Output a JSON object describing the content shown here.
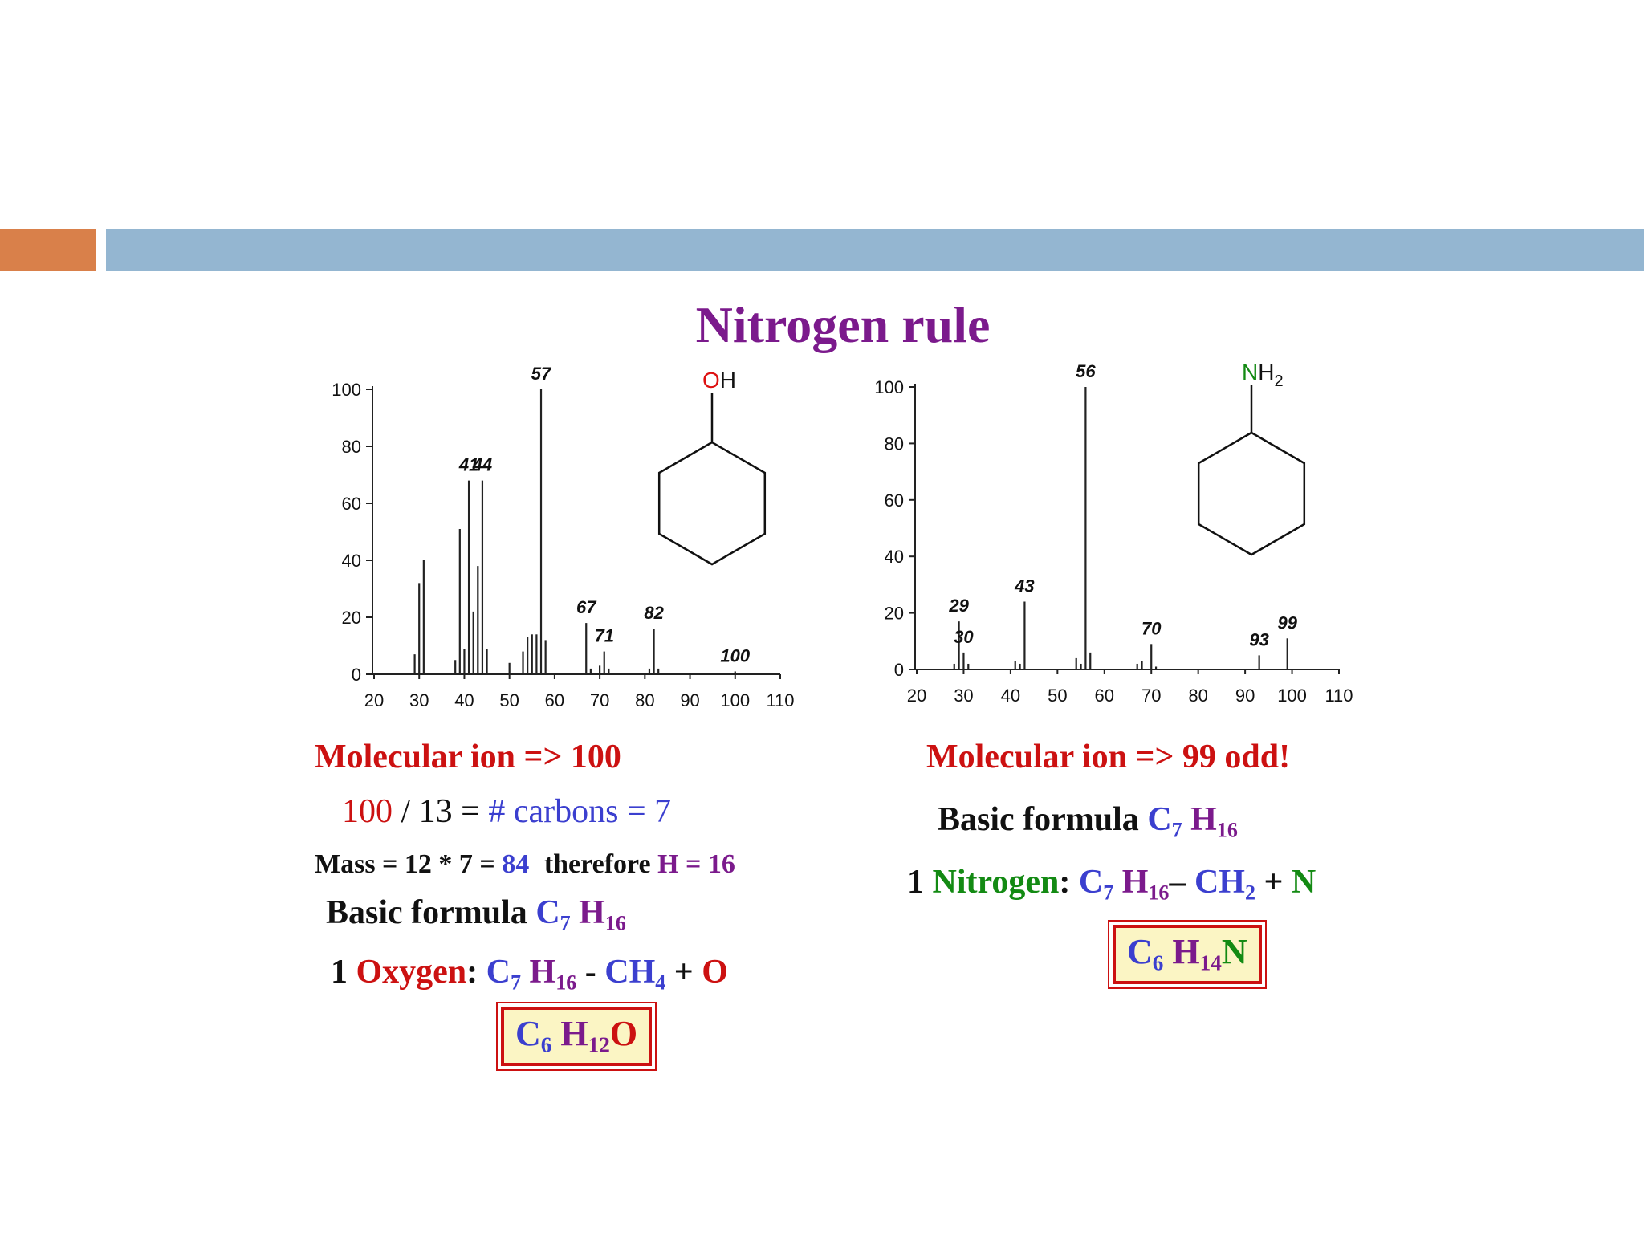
{
  "title": "Nitrogen rule",
  "colors": {
    "accent_orange": "#d9804a",
    "accent_blue": "#94b6d1",
    "title": "#7b1a8c",
    "red": "#cc1111",
    "blue": "#3b3fcf",
    "purple": "#7b1a8c",
    "green": "#138a13"
  },
  "chart_data": [
    {
      "type": "bar",
      "subtype": "mass spectrum",
      "ylim": [
        0,
        100
      ],
      "xlim": [
        20,
        110
      ],
      "yticks": [
        "0",
        "20",
        "40",
        "60",
        "80",
        "100"
      ],
      "xticks": [
        "20",
        "30",
        "40",
        "50",
        "60",
        "70",
        "80",
        "90",
        "100",
        "110"
      ],
      "peaks": [
        {
          "x": 29,
          "y": 7
        },
        {
          "x": 30,
          "y": 32
        },
        {
          "x": 31,
          "y": 40
        },
        {
          "x": 38,
          "y": 5
        },
        {
          "x": 39,
          "y": 51
        },
        {
          "x": 40,
          "y": 9
        },
        {
          "x": 41,
          "y": 68
        },
        {
          "x": 42,
          "y": 22
        },
        {
          "x": 43,
          "y": 38
        },
        {
          "x": 44,
          "y": 68
        },
        {
          "x": 45,
          "y": 9
        },
        {
          "x": 50,
          "y": 4
        },
        {
          "x": 53,
          "y": 8
        },
        {
          "x": 54,
          "y": 13
        },
        {
          "x": 55,
          "y": 14
        },
        {
          "x": 56,
          "y": 14
        },
        {
          "x": 57,
          "y": 100
        },
        {
          "x": 58,
          "y": 12
        },
        {
          "x": 67,
          "y": 18
        },
        {
          "x": 68,
          "y": 2
        },
        {
          "x": 70,
          "y": 3
        },
        {
          "x": 71,
          "y": 8
        },
        {
          "x": 72,
          "y": 2
        },
        {
          "x": 81,
          "y": 2
        },
        {
          "x": 82,
          "y": 16
        },
        {
          "x": 83,
          "y": 2
        },
        {
          "x": 100,
          "y": 1
        }
      ],
      "peak_labels": [
        {
          "x": 41,
          "y": 68,
          "label": "41"
        },
        {
          "x": 44,
          "y": 68,
          "label": "44"
        },
        {
          "x": 57,
          "y": 100,
          "label": "57"
        },
        {
          "x": 67,
          "y": 18,
          "label": "67"
        },
        {
          "x": 71,
          "y": 8,
          "label": "71"
        },
        {
          "x": 82,
          "y": 16,
          "label": "82"
        },
        {
          "x": 100,
          "y": 1,
          "label": "100"
        }
      ],
      "structure": {
        "ring": "cyclohexane",
        "group_element": "O",
        "group_rest": "H"
      }
    },
    {
      "type": "bar",
      "subtype": "mass spectrum",
      "ylim": [
        0,
        100
      ],
      "xlim": [
        20,
        110
      ],
      "yticks": [
        "0",
        "20",
        "40",
        "60",
        "80",
        "100"
      ],
      "xticks": [
        "20",
        "30",
        "40",
        "50",
        "60",
        "70",
        "80",
        "90",
        "100",
        "110"
      ],
      "peaks": [
        {
          "x": 28,
          "y": 2
        },
        {
          "x": 29,
          "y": 17
        },
        {
          "x": 30,
          "y": 6
        },
        {
          "x": 31,
          "y": 2
        },
        {
          "x": 41,
          "y": 3
        },
        {
          "x": 42,
          "y": 2
        },
        {
          "x": 43,
          "y": 24
        },
        {
          "x": 54,
          "y": 4
        },
        {
          "x": 55,
          "y": 2
        },
        {
          "x": 56,
          "y": 100
        },
        {
          "x": 57,
          "y": 6
        },
        {
          "x": 67,
          "y": 2
        },
        {
          "x": 68,
          "y": 3
        },
        {
          "x": 70,
          "y": 9
        },
        {
          "x": 71,
          "y": 1
        },
        {
          "x": 93,
          "y": 5
        },
        {
          "x": 99,
          "y": 11
        }
      ],
      "peak_labels": [
        {
          "x": 29,
          "y": 17,
          "label": "29"
        },
        {
          "x": 30,
          "y": 6,
          "label": "30"
        },
        {
          "x": 43,
          "y": 24,
          "label": "43"
        },
        {
          "x": 56,
          "y": 100,
          "label": "56"
        },
        {
          "x": 70,
          "y": 9,
          "label": "70"
        },
        {
          "x": 93,
          "y": 5,
          "label": "93"
        },
        {
          "x": 99,
          "y": 11,
          "label": "99"
        }
      ],
      "structure": {
        "ring": "cyclohexane",
        "group_element": "N",
        "group_rest": "H",
        "group_sub": "2"
      }
    }
  ],
  "left": {
    "molecular_ion_label": "Molecular ion => 100",
    "carbons": {
      "num": "100",
      "mid": "/ 13 =",
      "rest": "# carbons = 7"
    },
    "mass": {
      "prefix": "Mass = 12 * 7 =",
      "value": "84",
      "middle": "therefore",
      "result": "H = 16"
    },
    "basic_formula": {
      "label": "Basic formula",
      "c": "C",
      "c_sub": "7",
      "h": "H",
      "h_sub": "16"
    },
    "oxygen_line": {
      "count": "1",
      "element": "Oxygen",
      "colon": ":",
      "c": "C",
      "c_sub": "7",
      "h": "H",
      "h_sub": "16",
      "minus": "-",
      "ch": "CH",
      "ch_sub": "4",
      "plus": "+",
      "add": "O"
    },
    "result": {
      "c": "C",
      "c_sub": "6",
      "h": "H",
      "h_sub": "12",
      "x": "O"
    }
  },
  "right": {
    "molecular_ion_label": "Molecular ion => 99  odd!",
    "basic_formula": {
      "label": "Basic formula",
      "c": "C",
      "c_sub": "7",
      "h": "H",
      "h_sub": "16"
    },
    "nitrogen_line": {
      "count": "1",
      "element": "Nitrogen",
      "colon": ":",
      "c": "C",
      "c_sub": "7",
      "h": "H",
      "h_sub": "16",
      "minus": "–",
      "ch": "CH",
      "ch_sub": "2",
      "plus": "+",
      "add": "N"
    },
    "result": {
      "c": "C",
      "c_sub": "6",
      "h": "H",
      "h_sub": "14",
      "x": "N"
    }
  }
}
